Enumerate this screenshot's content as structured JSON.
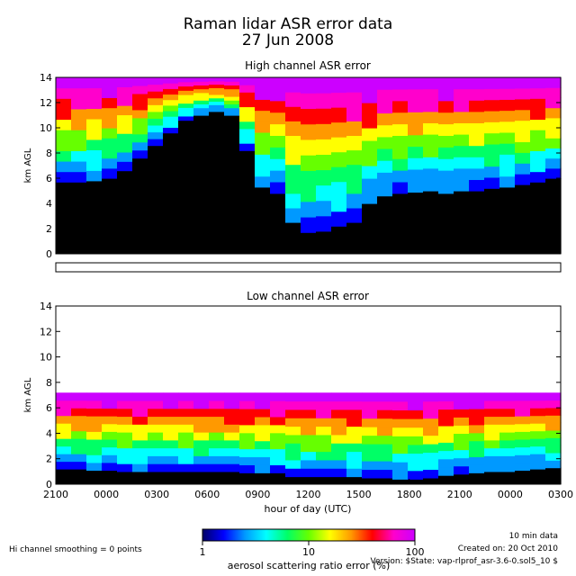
{
  "chart_data": [
    {
      "type": "heatmap",
      "title": "Raman lidar ASR error data",
      "subtitle": "27 Jun 2008",
      "panel_title": "High channel ASR error",
      "ylabel": "km AGL",
      "xlabel": "",
      "x_tick_labels": [],
      "ylim": [
        0,
        14
      ],
      "y_ticks": [
        0,
        2,
        4,
        6,
        8,
        10,
        12,
        14
      ],
      "grid": false,
      "signal_top_km": [
        14,
        14,
        14,
        14,
        14,
        14,
        14,
        14,
        14,
        14,
        14,
        14,
        14,
        14,
        14,
        14,
        14,
        14,
        14,
        14,
        14,
        14,
        14,
        14,
        14,
        14,
        14,
        14,
        14,
        14,
        14,
        14,
        14
      ],
      "black_top_km": [
        5.7,
        5.7,
        5.8,
        6.0,
        6.6,
        7.6,
        8.6,
        9.6,
        10.6,
        11.0,
        11.3,
        11.0,
        8.2,
        5.3,
        4.8,
        2.5,
        1.7,
        1.8,
        2.2,
        2.5,
        4.0,
        4.6,
        4.8,
        4.9,
        5.0,
        4.8,
        5.0,
        5.0,
        5.2,
        5.3,
        5.5,
        5.7,
        6.0
      ]
    },
    {
      "type": "heatmap",
      "panel_title": "Low channel ASR error",
      "ylabel": "km AGL",
      "xlabel": "hour of day (UTC)",
      "x_tick_labels": [
        "2100",
        "0000",
        "0300",
        "0600",
        "0900",
        "1200",
        "1500",
        "1800",
        "2100",
        "0000",
        "0300"
      ],
      "ylim": [
        0,
        14
      ],
      "y_ticks": [
        0,
        2,
        4,
        6,
        8,
        10,
        12,
        14
      ],
      "grid": false,
      "signal_top_km": [
        7.2,
        7.2,
        7.2,
        7.2,
        7.2,
        7.2,
        7.2,
        7.2,
        7.2,
        7.2,
        7.2,
        7.2,
        7.2,
        7.2,
        7.2,
        7.2,
        7.2,
        7.2,
        7.2,
        7.2,
        7.2,
        7.2,
        7.2,
        7.2,
        7.2,
        7.2,
        7.2,
        7.2,
        7.2,
        7.2,
        7.2,
        7.2,
        7.2
      ],
      "black_top_km": [
        1.2,
        1.2,
        1.1,
        1.1,
        1.0,
        1.0,
        1.0,
        1.0,
        1.0,
        1.0,
        1.0,
        1.0,
        0.9,
        0.9,
        0.9,
        0.6,
        0.6,
        0.6,
        0.6,
        0.6,
        0.5,
        0.5,
        0.4,
        0.4,
        0.5,
        0.7,
        0.8,
        0.9,
        1.0,
        1.0,
        1.1,
        1.2,
        1.3
      ]
    }
  ],
  "colorbar": {
    "label": "aerosol scattering ratio error (%)",
    "tick_labels": [
      "1",
      "10",
      "100"
    ],
    "scale": "log",
    "colors": [
      "#000066",
      "#0000ff",
      "#0099ff",
      "#00ffff",
      "#00ff66",
      "#66ff00",
      "#ffff00",
      "#ff9900",
      "#ff0000",
      "#ff00cc",
      "#cc00ff"
    ]
  },
  "footer": {
    "smoothing": "Hi channel smoothing = 0 points",
    "resolution": "10 min data",
    "created": "Created on: 20 Oct 2010",
    "version": "Version: $State: vap-rlprof_asr-3.6-0.sol5_10 $"
  }
}
